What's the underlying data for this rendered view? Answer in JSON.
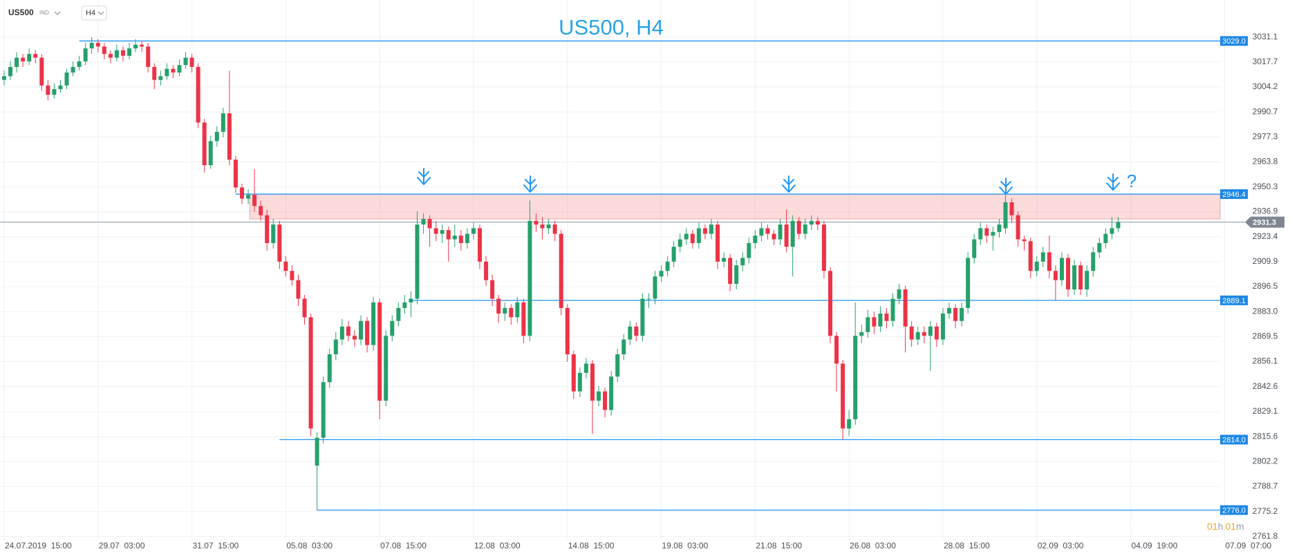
{
  "header": {
    "symbol": "US500",
    "market": "IND",
    "timeframe": "H4"
  },
  "countdown": {
    "hours": "01",
    "h": "h",
    "minutes": "01",
    "m": "m"
  },
  "chart_data": {
    "type": "candlestick",
    "title": "US500, H4",
    "annotation": "?",
    "up_color": "#26a06a",
    "down_color": "#ec3347",
    "level_color": "#2196f3",
    "grid": true,
    "ylim": [
      2759.8,
      3051.1
    ],
    "yticks": [
      3031.1,
      3017.7,
      3004.2,
      2990.7,
      2977.3,
      2963.8,
      2950.3,
      2936.9,
      2923.4,
      2909.9,
      2896.5,
      {
        "value": 2883.0,
        "label": "2883.0"
      },
      2869.5,
      2856.1,
      2842.6,
      2829.1,
      2815.6,
      2802.2,
      2788.7,
      2775.2,
      2761.8
    ],
    "xlim": [
      -0.66,
      194.3
    ],
    "xticks": [
      {
        "value": 0,
        "label": "24.07.2019  15:00"
      },
      {
        "value": 15,
        "label": "29.07  03:00"
      },
      {
        "value": 30,
        "label": "31.07  15:00"
      },
      {
        "value": 45,
        "label": "05.08  03:00"
      },
      {
        "value": 60,
        "label": "07.08  15:00"
      },
      {
        "value": 75,
        "label": "12.08  03:00"
      },
      {
        "value": 90,
        "label": "14.08  15:00"
      },
      {
        "value": 105,
        "label": "19.08  03:00"
      },
      {
        "value": 120,
        "label": "21.08  15:00"
      },
      {
        "value": 135,
        "label": "26.08  03:00"
      },
      {
        "value": 150,
        "label": "28.08  15:00"
      },
      {
        "value": 165,
        "label": "02.09  03:00"
      },
      {
        "value": 180,
        "label": "04.09  19:00"
      },
      {
        "value": 195,
        "label": "07.09  07:00"
      }
    ],
    "levels": [
      {
        "value": 3029.0,
        "label": "3029.0"
      },
      {
        "value": 2946.4,
        "label": "2946.4"
      },
      {
        "value": 2889.1,
        "label": "2889.1"
      },
      {
        "value": 2814.0,
        "label": "2814.0"
      },
      {
        "value": 2776.0,
        "label": "2776.0"
      }
    ],
    "zone": [
      2933,
      2946.4
    ],
    "last_price": {
      "value": 2931.3,
      "label": "2931.3"
    },
    "candles": [
      [
        3008,
        3013,
        3005,
        3010
      ],
      [
        3010,
        3018,
        3008,
        3015
      ],
      [
        3015,
        3023,
        3012,
        3020
      ],
      [
        3020,
        3022,
        3015,
        3018
      ],
      [
        3018,
        3025,
        3016,
        3022
      ],
      [
        3022,
        3024,
        3017,
        3020
      ],
      [
        3020,
        3022,
        3002,
        3005
      ],
      [
        3005,
        3008,
        2997,
        3000
      ],
      [
        3000,
        3006,
        2998,
        3003
      ],
      [
        3003,
        3008,
        3001,
        3005
      ],
      [
        3005,
        3014,
        3003,
        3012
      ],
      [
        3012,
        3018,
        3010,
        3015
      ],
      [
        3015,
        3021,
        3013,
        3018
      ],
      [
        3018,
        3028,
        3016,
        3025
      ],
      [
        3025,
        3031,
        3022,
        3028
      ],
      [
        3028,
        3030,
        3023,
        3026
      ],
      [
        3026,
        3028,
        3019,
        3022
      ],
      [
        3022,
        3024,
        3017,
        3020
      ],
      [
        3020,
        3027,
        3018,
        3024
      ],
      [
        3024,
        3026,
        3018,
        3021
      ],
      [
        3021,
        3028,
        3019,
        3025
      ],
      [
        3025,
        3030,
        3023,
        3027
      ],
      [
        3027,
        3029,
        3023,
        3026
      ],
      [
        3026,
        3028,
        3012,
        3015
      ],
      [
        3015,
        3017,
        3003,
        3008
      ],
      [
        3008,
        3013,
        3005,
        3010
      ],
      [
        3010,
        3017,
        3008,
        3014
      ],
      [
        3014,
        3016,
        3009,
        3012
      ],
      [
        3012,
        3019,
        3010,
        3016
      ],
      [
        3016,
        3023,
        3014,
        3020
      ],
      [
        3020,
        3022,
        3012,
        3015
      ],
      [
        3015,
        3017,
        2982,
        2985
      ],
      [
        2985,
        2987,
        2958,
        2962
      ],
      [
        2962,
        2978,
        2960,
        2975
      ],
      [
        2975,
        2983,
        2972,
        2980
      ],
      [
        2980,
        2993,
        2977,
        2990
      ],
      [
        2990,
        3013,
        2962,
        2965
      ],
      [
        2965,
        2967,
        2947,
        2950
      ],
      [
        2950,
        2952,
        2941,
        2944
      ],
      [
        2944,
        2949,
        2941,
        2946
      ],
      [
        2946,
        2960,
        2937,
        2940
      ],
      [
        2940,
        2943,
        2932,
        2935
      ],
      [
        2935,
        2938,
        2916,
        2920
      ],
      [
        2920,
        2933,
        2917,
        2930
      ],
      [
        2930,
        2932,
        2906,
        2910
      ],
      [
        2910,
        2913,
        2902,
        2905
      ],
      [
        2905,
        2908,
        2897,
        2900
      ],
      [
        2900,
        2903,
        2886,
        2890
      ],
      [
        2890,
        2892,
        2876,
        2880
      ],
      [
        2880,
        2882,
        2816,
        2820
      ],
      [
        2800,
        2818,
        2776,
        2815
      ],
      [
        2815,
        2848,
        2812,
        2845
      ],
      [
        2845,
        2863,
        2842,
        2860
      ],
      [
        2860,
        2872,
        2857,
        2868
      ],
      [
        2868,
        2879,
        2865,
        2875
      ],
      [
        2875,
        2878,
        2867,
        2870
      ],
      [
        2870,
        2873,
        2864,
        2868
      ],
      [
        2868,
        2881,
        2865,
        2878
      ],
      [
        2878,
        2880,
        2861,
        2865
      ],
      [
        2865,
        2891,
        2862,
        2888
      ],
      [
        2888,
        2890,
        2825,
        2835
      ],
      [
        2835,
        2873,
        2832,
        2870
      ],
      [
        2870,
        2881,
        2867,
        2878
      ],
      [
        2878,
        2888,
        2875,
        2885
      ],
      [
        2885,
        2892,
        2882,
        2888
      ],
      [
        2888,
        2894,
        2880,
        2890
      ],
      [
        2890,
        2937,
        2887,
        2930
      ],
      [
        2930,
        2936,
        2925,
        2933
      ],
      [
        2933,
        2935,
        2918,
        2928
      ],
      [
        2928,
        2932,
        2921,
        2925
      ],
      [
        2925,
        2930,
        2920,
        2927
      ],
      [
        2927,
        2929,
        2910,
        2922
      ],
      [
        2922,
        2930,
        2918,
        2924
      ],
      [
        2924,
        2927,
        2916,
        2920
      ],
      [
        2920,
        2928,
        2917,
        2925
      ],
      [
        2925,
        2931,
        2922,
        2928
      ],
      [
        2928,
        2930,
        2906,
        2910
      ],
      [
        2910,
        2913,
        2897,
        2900
      ],
      [
        2900,
        2903,
        2886,
        2890
      ],
      [
        2890,
        2892,
        2877,
        2882
      ],
      [
        2882,
        2888,
        2878,
        2885
      ],
      [
        2885,
        2887,
        2876,
        2880
      ],
      [
        2880,
        2891,
        2877,
        2888
      ],
      [
        2888,
        2890,
        2866,
        2870
      ],
      [
        2870,
        2943,
        2867,
        2932
      ],
      [
        2932,
        2936,
        2926,
        2930
      ],
      [
        2930,
        2934,
        2922,
        2928
      ],
      [
        2928,
        2933,
        2925,
        2930
      ],
      [
        2930,
        2932,
        2921,
        2925
      ],
      [
        2925,
        2927,
        2881,
        2885
      ],
      [
        2885,
        2887,
        2856,
        2860
      ],
      [
        2860,
        2862,
        2836,
        2840
      ],
      [
        2840,
        2853,
        2837,
        2850
      ],
      [
        2850,
        2858,
        2847,
        2855
      ],
      [
        2855,
        2857,
        2817,
        2835
      ],
      [
        2835,
        2843,
        2832,
        2840
      ],
      [
        2840,
        2842,
        2826,
        2830
      ],
      [
        2830,
        2851,
        2827,
        2848
      ],
      [
        2848,
        2863,
        2845,
        2860
      ],
      [
        2860,
        2871,
        2857,
        2868
      ],
      [
        2868,
        2878,
        2865,
        2875
      ],
      [
        2875,
        2877,
        2867,
        2870
      ],
      [
        2870,
        2893,
        2867,
        2890
      ],
      [
        2890,
        2893,
        2885,
        2890
      ],
      [
        2890,
        2905,
        2887,
        2902
      ],
      [
        2902,
        2908,
        2899,
        2905
      ],
      [
        2905,
        2913,
        2902,
        2910
      ],
      [
        2910,
        2921,
        2907,
        2918
      ],
      [
        2918,
        2925,
        2915,
        2922
      ],
      [
        2922,
        2928,
        2919,
        2925
      ],
      [
        2925,
        2927,
        2917,
        2920
      ],
      [
        2920,
        2931,
        2917,
        2928
      ],
      [
        2928,
        2930,
        2922,
        2925
      ],
      [
        2925,
        2933,
        2922,
        2930
      ],
      [
        2930,
        2932,
        2906,
        2910
      ],
      [
        2910,
        2915,
        2907,
        2912
      ],
      [
        2912,
        2914,
        2894,
        2898
      ],
      [
        2898,
        2911,
        2895,
        2908
      ],
      [
        2908,
        2915,
        2905,
        2912
      ],
      [
        2912,
        2923,
        2909,
        2920
      ],
      [
        2920,
        2927,
        2917,
        2924
      ],
      [
        2924,
        2931,
        2921,
        2928
      ],
      [
        2928,
        2930,
        2922,
        2925
      ],
      [
        2925,
        2927,
        2919,
        2922
      ],
      [
        2922,
        2933,
        2919,
        2930
      ],
      [
        2930,
        2938,
        2915,
        2918
      ],
      [
        2918,
        2935,
        2902,
        2932
      ],
      [
        2932,
        2934,
        2922,
        2925
      ],
      [
        2925,
        2933,
        2922,
        2930
      ],
      [
        2930,
        2935,
        2927,
        2932
      ],
      [
        2932,
        2934,
        2927,
        2930
      ],
      [
        2930,
        2932,
        2901,
        2905
      ],
      [
        2905,
        2907,
        2866,
        2870
      ],
      [
        2870,
        2872,
        2840,
        2855
      ],
      [
        2855,
        2857,
        2814,
        2820
      ],
      [
        2820,
        2830,
        2816,
        2825
      ],
      [
        2825,
        2888,
        2822,
        2870
      ],
      [
        2870,
        2876,
        2866,
        2872
      ],
      [
        2872,
        2884,
        2869,
        2880
      ],
      [
        2880,
        2883,
        2871,
        2875
      ],
      [
        2875,
        2886,
        2872,
        2882
      ],
      [
        2882,
        2885,
        2874,
        2878
      ],
      [
        2878,
        2893,
        2875,
        2890
      ],
      [
        2890,
        2898,
        2887,
        2895
      ],
      [
        2895,
        2897,
        2861,
        2875
      ],
      [
        2875,
        2878,
        2864,
        2868
      ],
      [
        2868,
        2875,
        2865,
        2872
      ],
      [
        2872,
        2875,
        2866,
        2870
      ],
      [
        2870,
        2878,
        2851,
        2875
      ],
      [
        2875,
        2877,
        2864,
        2868
      ],
      [
        2868,
        2885,
        2865,
        2882
      ],
      [
        2882,
        2888,
        2879,
        2885
      ],
      [
        2885,
        2887,
        2874,
        2878
      ],
      [
        2878,
        2888,
        2875,
        2885
      ],
      [
        2885,
        2915,
        2882,
        2912
      ],
      [
        2912,
        2925,
        2909,
        2922
      ],
      [
        2922,
        2931,
        2919,
        2928
      ],
      [
        2928,
        2930,
        2920,
        2924
      ],
      [
        2924,
        2929,
        2916,
        2926
      ],
      [
        2926,
        2933,
        2923,
        2930
      ],
      [
        2928,
        2946,
        2925,
        2942
      ],
      [
        2942,
        2944,
        2931,
        2935
      ],
      [
        2935,
        2937,
        2918,
        2922
      ],
      [
        2922,
        2924,
        2916,
        2921
      ],
      [
        2921,
        2923,
        2901,
        2905
      ],
      [
        2905,
        2913,
        2902,
        2910
      ],
      [
        2910,
        2918,
        2907,
        2915
      ],
      [
        2915,
        2924,
        2901,
        2905
      ],
      [
        2905,
        2908,
        2889,
        2900
      ],
      [
        2900,
        2915,
        2897,
        2912
      ],
      [
        2912,
        2914,
        2891,
        2895
      ],
      [
        2895,
        2911,
        2892,
        2908
      ],
      [
        2908,
        2910,
        2892,
        2895
      ],
      [
        2895,
        2908,
        2891,
        2905
      ],
      [
        2905,
        2918,
        2902,
        2915
      ],
      [
        2915,
        2923,
        2912,
        2920
      ],
      [
        2920,
        2928,
        2917,
        2925
      ],
      [
        2925,
        2934,
        2922,
        2928
      ],
      [
        2928,
        2934,
        2926,
        2931.3
      ]
    ]
  }
}
